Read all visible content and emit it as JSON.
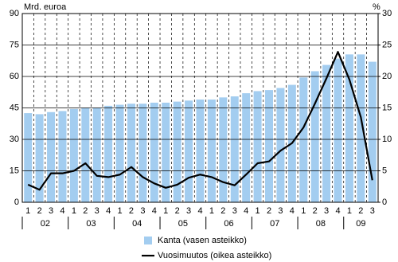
{
  "chart_data": {
    "type": "bar",
    "y_label": "Mrd. euroa",
    "y2_label": "%",
    "categories": [
      "1",
      "2",
      "3",
      "4",
      "1",
      "2",
      "3",
      "4",
      "1",
      "2",
      "3",
      "4",
      "1",
      "2",
      "3",
      "4",
      "1",
      "2",
      "3",
      "4",
      "1",
      "2",
      "3",
      "4",
      "1",
      "2",
      "3",
      "4",
      "1",
      "2",
      "3"
    ],
    "years": [
      "02",
      "03",
      "04",
      "05",
      "06",
      "07",
      "08",
      "09"
    ],
    "series": [
      {
        "name": "Kanta (vasen asteikko)",
        "type": "bar",
        "axis": "y",
        "color": "#a3cdf0",
        "values": [
          42.5,
          42,
          43,
          43.5,
          44.5,
          45,
          45,
          46,
          46.5,
          47,
          47,
          47.5,
          47.5,
          48,
          48.5,
          49,
          49,
          50,
          50.5,
          52,
          53,
          53.5,
          54.5,
          56,
          59.5,
          62.5,
          65.5,
          68.5,
          70.5,
          70.5,
          67
        ]
      },
      {
        "name": "Vuosimuutos (oikea asteikko)",
        "type": "line",
        "axis": "y2",
        "color": "#000000",
        "values": [
          2.8,
          2.0,
          4.6,
          4.6,
          5.0,
          6.2,
          4.2,
          4.0,
          4.4,
          5.6,
          4.0,
          3.0,
          2.3,
          2.8,
          3.9,
          4.4,
          4.0,
          3.2,
          2.7,
          4.4,
          6.2,
          6.5,
          8.2,
          9.4,
          11.9,
          15.7,
          19.7,
          23.9,
          19.5,
          13.5,
          3.5
        ]
      }
    ],
    "ylim": [
      0,
      90
    ],
    "yticks": [
      0,
      15,
      30,
      45,
      60,
      75,
      90
    ],
    "y2lim": [
      0,
      30
    ],
    "y2ticks": [
      0,
      5,
      10,
      15,
      20,
      25,
      30
    ],
    "grid": true
  }
}
